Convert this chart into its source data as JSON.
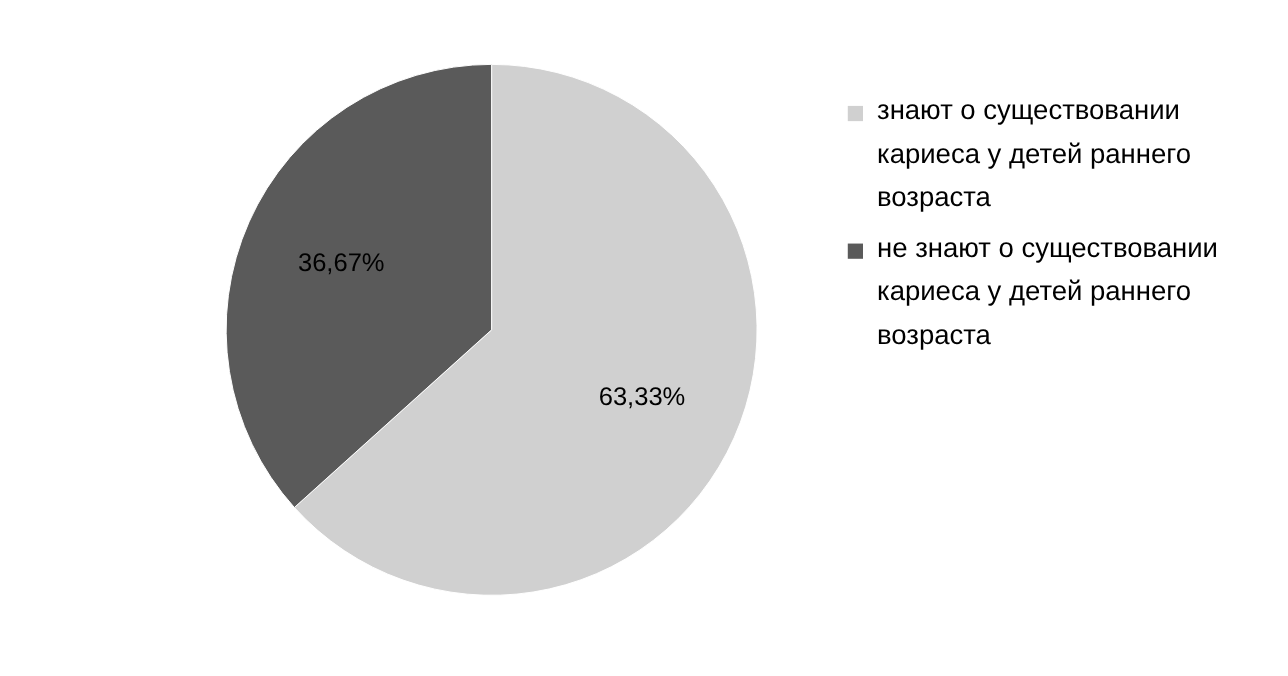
{
  "chart_data": {
    "type": "pie",
    "categories": [
      "знают о существовании кариеса у детей раннего возраста",
      "не знают о существовании кариеса у детей раннего возраста"
    ],
    "values": [
      63.33,
      36.67
    ],
    "colors": [
      "#d0d0d0",
      "#5a5a5a"
    ],
    "value_labels": [
      "63,33%",
      "36,67%"
    ],
    "legend": "right"
  }
}
